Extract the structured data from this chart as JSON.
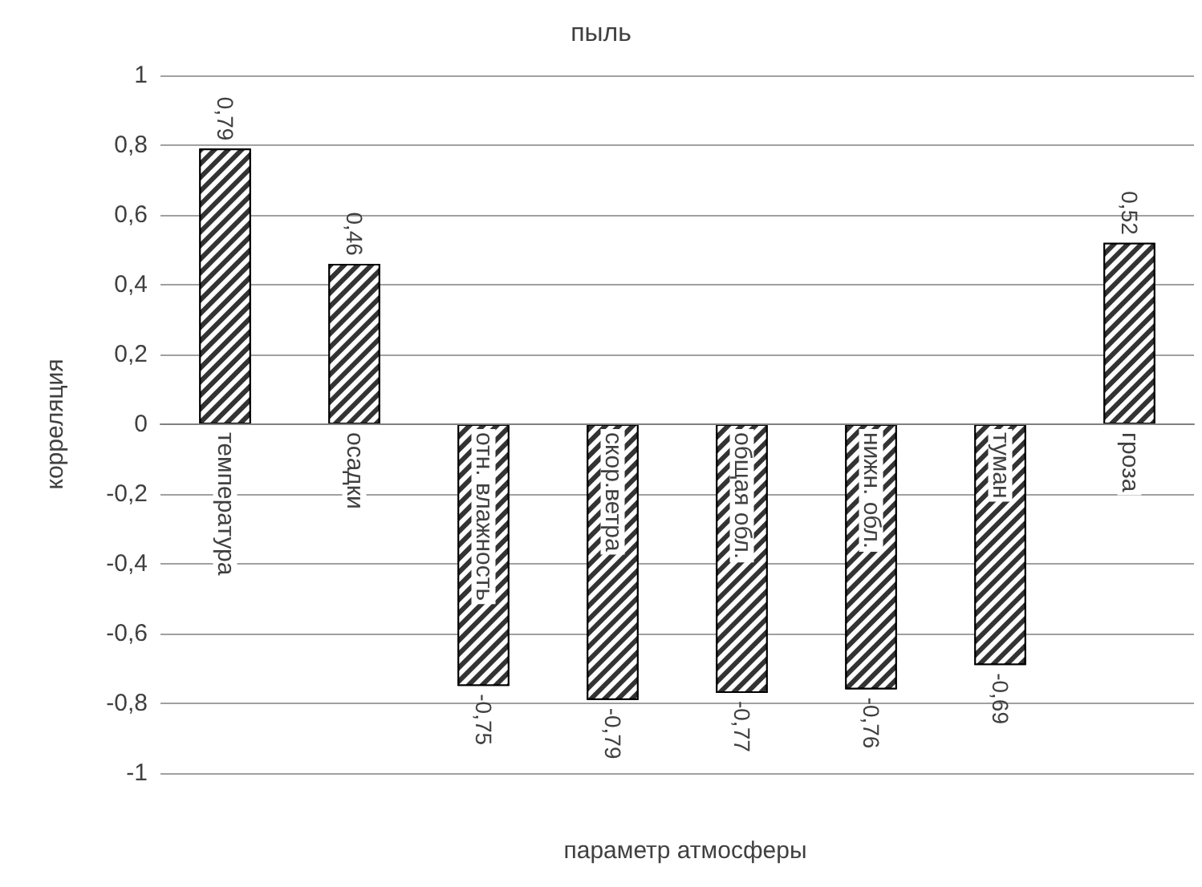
{
  "chart_data": {
    "type": "bar",
    "title": "пыль",
    "xlabel": "параметр атмосферы",
    "ylabel": "корреляция",
    "categories": [
      "температура",
      "осадки",
      "отн. влажность",
      "скор.ветра",
      "общая обл.",
      "нижн. обл.",
      "туман",
      "гроза"
    ],
    "values": [
      0.79,
      0.46,
      -0.75,
      -0.79,
      -0.77,
      -0.76,
      -0.69,
      0.52
    ],
    "value_labels": [
      "0,79",
      "0,46",
      "-0,75",
      "-0,79",
      "-0,77",
      "-0,76",
      "-0,69",
      "0,52"
    ],
    "color": "#333333",
    "ylim": [
      -1,
      1
    ],
    "yticks": [
      {
        "value": -1,
        "label": "-1"
      },
      {
        "value": -0.8,
        "label": "-0,8"
      },
      {
        "value": -0.6,
        "label": "-0,6"
      },
      {
        "value": -0.4,
        "label": "-0,4"
      },
      {
        "value": -0.2,
        "label": "-0,2"
      },
      {
        "value": 0,
        "label": "0"
      },
      {
        "value": 0.2,
        "label": "0,2"
      },
      {
        "value": 0.4,
        "label": "0,4"
      },
      {
        "value": 0.6,
        "label": "0,6"
      },
      {
        "value": 0.8,
        "label": "0,8"
      },
      {
        "value": 1,
        "label": "1"
      }
    ],
    "grid": "y"
  }
}
